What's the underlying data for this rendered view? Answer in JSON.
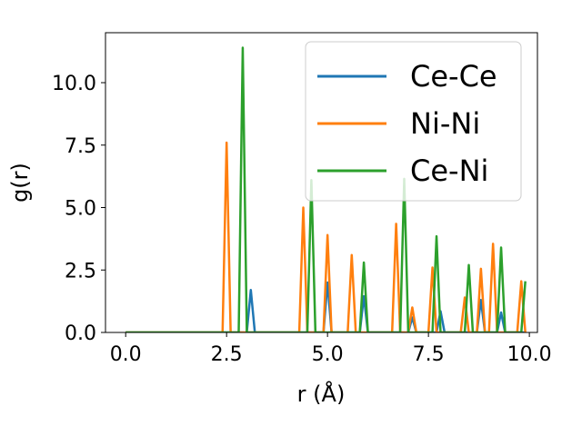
{
  "chart_data": {
    "type": "line",
    "xlabel": "r (Å)",
    "ylabel": "g(r)",
    "xlim": [
      -0.5,
      10.2
    ],
    "ylim": [
      0.0,
      12.0
    ],
    "x_ticks": [
      0.0,
      2.5,
      5.0,
      7.5,
      10.0
    ],
    "x_tick_labels": [
      "0.0",
      "2.5",
      "5.0",
      "7.5",
      "10.0"
    ],
    "y_ticks": [
      0.0,
      2.5,
      5.0,
      7.5,
      10.0
    ],
    "y_tick_labels": [
      "0.0",
      "2.5",
      "5.0",
      "7.5",
      "10.0"
    ],
    "grid": false,
    "legend": {
      "position": "top-right"
    },
    "colors": {
      "Ce-Ce": "#1f77b4",
      "Ni-Ni": "#ff7f0e",
      "Ce-Ni": "#2ca02c"
    },
    "series": [
      {
        "name": "Ce-Ce",
        "x": [
          0.0,
          3.0,
          3.1,
          3.2,
          4.9,
          5.0,
          5.1,
          5.8,
          5.9,
          6.0,
          7.0,
          7.1,
          7.2,
          7.7,
          7.8,
          7.9,
          8.7,
          8.8,
          8.9,
          9.2,
          9.3,
          9.4,
          9.9
        ],
        "y": [
          0.0,
          0.0,
          1.7,
          0.0,
          0.0,
          2.0,
          0.0,
          0.0,
          1.45,
          0.0,
          0.0,
          0.6,
          0.0,
          0.0,
          0.85,
          0.0,
          0.0,
          1.3,
          0.0,
          0.0,
          0.8,
          0.0,
          0.0
        ]
      },
      {
        "name": "Ni-Ni",
        "x": [
          0.0,
          2.4,
          2.5,
          2.6,
          4.3,
          4.4,
          4.5,
          4.9,
          5.0,
          5.1,
          5.5,
          5.6,
          5.7,
          6.6,
          6.7,
          6.8,
          7.0,
          7.1,
          7.2,
          7.5,
          7.6,
          7.7,
          8.3,
          8.4,
          8.5,
          8.7,
          8.8,
          8.9,
          9.0,
          9.1,
          9.2,
          9.7,
          9.8,
          9.9
        ],
        "y": [
          0.0,
          0.0,
          7.6,
          0.0,
          0.0,
          5.0,
          0.0,
          0.0,
          3.9,
          0.0,
          0.0,
          3.1,
          0.0,
          0.0,
          4.35,
          0.0,
          0.0,
          1.0,
          0.0,
          0.0,
          2.6,
          0.0,
          0.0,
          1.4,
          0.0,
          0.0,
          2.55,
          0.0,
          0.0,
          3.55,
          0.0,
          0.0,
          2.05,
          0.0
        ]
      },
      {
        "name": "Ce-Ni",
        "x": [
          0.0,
          2.8,
          2.9,
          3.0,
          4.5,
          4.6,
          4.7,
          5.8,
          5.9,
          6.0,
          6.8,
          6.9,
          7.0,
          7.6,
          7.7,
          7.8,
          8.4,
          8.5,
          8.6,
          9.2,
          9.3,
          9.4,
          9.8,
          9.9
        ],
        "y": [
          0.0,
          0.0,
          11.4,
          0.0,
          0.0,
          6.1,
          0.0,
          0.0,
          2.8,
          0.0,
          0.0,
          6.15,
          0.0,
          0.0,
          3.85,
          0.0,
          0.0,
          2.7,
          0.0,
          0.0,
          3.4,
          0.0,
          0.0,
          2.05
        ]
      }
    ]
  }
}
